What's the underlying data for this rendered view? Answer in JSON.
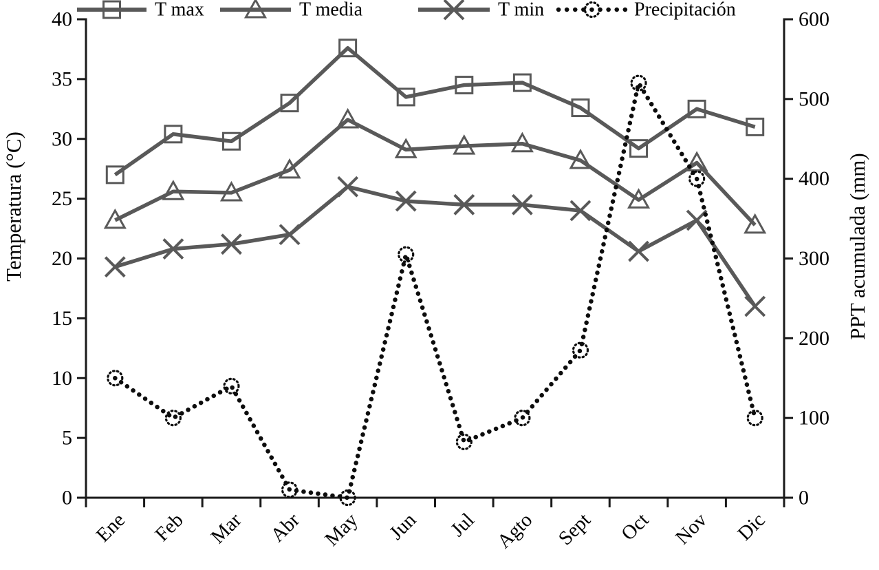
{
  "chart_data": {
    "type": "line",
    "title": "",
    "categories": [
      "Ene",
      "Feb",
      "Mar",
      "Abr",
      "May",
      "Jun",
      "Jul",
      "Agto",
      "Sept",
      "Oct",
      "Nov",
      "Dic"
    ],
    "series": [
      {
        "name": "T max",
        "axis": "left",
        "marker": "square",
        "style": "solid",
        "color": "#595959",
        "values": [
          27.0,
          30.4,
          29.8,
          33.0,
          37.6,
          33.5,
          34.5,
          34.7,
          32.6,
          29.2,
          32.5,
          31.0
        ]
      },
      {
        "name": "T media",
        "axis": "left",
        "marker": "triangle",
        "style": "solid",
        "color": "#595959",
        "values": [
          23.2,
          25.6,
          25.5,
          27.4,
          31.6,
          29.1,
          29.4,
          29.6,
          28.2,
          24.9,
          28.0,
          22.8
        ]
      },
      {
        "name": "T min",
        "axis": "left",
        "marker": "x",
        "style": "solid",
        "color": "#595959",
        "values": [
          19.3,
          20.8,
          21.2,
          22.0,
          26.0,
          24.8,
          24.5,
          24.5,
          24.0,
          20.6,
          23.2,
          16.0
        ]
      },
      {
        "name": "Precipitación",
        "axis": "right",
        "marker": "dotted-circle",
        "style": "dotted",
        "color": "#0d0d0d",
        "values": [
          150,
          100,
          140,
          10,
          0,
          305,
          70,
          100,
          185,
          520,
          400,
          100
        ]
      }
    ],
    "left_axis": {
      "label": "Temperatura (°C)",
      "min": 0,
      "max": 40,
      "step": 5,
      "ticks": [
        "0",
        "5",
        "10",
        "15",
        "20",
        "25",
        "30",
        "35",
        "40"
      ]
    },
    "right_axis": {
      "label": "PPT acumulada (mm)",
      "min": 0,
      "max": 600,
      "step": 100,
      "ticks": [
        "0",
        "100",
        "200",
        "300",
        "400",
        "500",
        "600"
      ]
    },
    "legend_position": "top",
    "grid": false
  },
  "colors": {
    "background": "#ffffff",
    "axis": "#1a1a1a",
    "temperature_series": "#595959",
    "precipitation_series": "#0d0d0d"
  }
}
